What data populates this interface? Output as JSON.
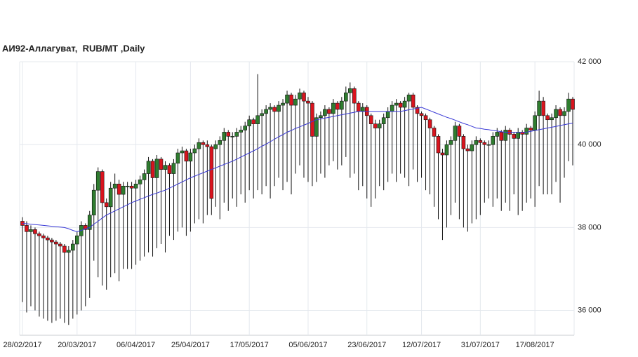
{
  "chart_data": {
    "type": "candlestick",
    "title": "АИ92-Аллагуват,  RUB/MT ,Daily",
    "categories": [
      "28/02/2017",
      null,
      null,
      null,
      null,
      null,
      null,
      null,
      null,
      null,
      null,
      null,
      null,
      "20/03/2017",
      null,
      null,
      null,
      null,
      null,
      null,
      null,
      null,
      null,
      null,
      null,
      null,
      null,
      "06/04/2017",
      null,
      null,
      null,
      null,
      null,
      null,
      null,
      null,
      null,
      null,
      null,
      null,
      "25/04/2017",
      null,
      null,
      null,
      null,
      null,
      null,
      null,
      null,
      null,
      null,
      null,
      null,
      null,
      "17/05/2017",
      null,
      null,
      null,
      null,
      null,
      null,
      null,
      null,
      null,
      null,
      null,
      null,
      null,
      "05/06/2017",
      null,
      null,
      null,
      null,
      null,
      null,
      null,
      null,
      null,
      null,
      null,
      null,
      null,
      "23/06/2017",
      null,
      null,
      null,
      null,
      null,
      null,
      null,
      null,
      null,
      null,
      null,
      null,
      "12/07/2017",
      null,
      null,
      null,
      null,
      null,
      null,
      null,
      null,
      null,
      null,
      null,
      null,
      null,
      "31/07/2017",
      null,
      null,
      null,
      null,
      null,
      null,
      null,
      null,
      null,
      null,
      null,
      null,
      "17/08/2017",
      null,
      null,
      null,
      null,
      null,
      null,
      null,
      null,
      null
    ],
    "open": [
      38150,
      38050,
      37900,
      37950,
      37850,
      37800,
      37750,
      37700,
      37650,
      37600,
      37550,
      37400,
      37450,
      37600,
      37800,
      38050,
      37950,
      38300,
      38900,
      39350,
      38600,
      38500,
      38950,
      39050,
      38800,
      39000,
      39000,
      38950,
      39050,
      39150,
      39300,
      39600,
      39200,
      39650,
      39400,
      39500,
      39300,
      39550,
      39800,
      39850,
      39600,
      39800,
      39900,
      40050,
      40000,
      39950,
      39900,
      40000,
      40100,
      40300,
      40200,
      40200,
      40300,
      40350,
      40450,
      40600,
      40500,
      40700,
      40750,
      40850,
      40900,
      40800,
      40950,
      41000,
      41200,
      40950,
      41100,
      41250,
      41050,
      41000,
      40200,
      40650,
      40700,
      40850,
      40750,
      41000,
      40850,
      41050,
      41250,
      41350,
      41000,
      40800,
      40900,
      40700,
      40500,
      40400,
      40500,
      40650,
      40800,
      40950,
      41000,
      40900,
      41050,
      41200,
      40900,
      40750,
      40700,
      40600,
      40400,
      40200,
      39800,
      39750,
      40000,
      40100,
      40450,
      40200,
      39900,
      39850,
      40000,
      40100,
      40050,
      40000,
      40000,
      40200,
      40300,
      40100,
      40350,
      40250,
      40150,
      40300,
      40250,
      40400,
      40350,
      40700,
      41050,
      40700,
      40600,
      40650,
      40850,
      40700,
      40800,
      41100
    ],
    "high": [
      38250,
      38150,
      38050,
      38000,
      37900,
      37850,
      37800,
      37750,
      37700,
      37650,
      37600,
      37550,
      37700,
      37900,
      38150,
      38100,
      38400,
      39050,
      39450,
      39400,
      38700,
      39100,
      39300,
      39150,
      39100,
      39100,
      39100,
      39150,
      39250,
      39400,
      39700,
      39650,
      39750,
      39700,
      39600,
      39550,
      39650,
      39900,
      39950,
      39900,
      39900,
      40000,
      40150,
      40100,
      40100,
      40000,
      40100,
      40200,
      40400,
      40350,
      40300,
      40400,
      40450,
      40550,
      40700,
      40650,
      41700,
      40850,
      40950,
      41000,
      40950,
      41050,
      41100,
      41300,
      41250,
      41200,
      41350,
      41300,
      41150,
      41050,
      40750,
      40800,
      40950,
      40900,
      41100,
      41050,
      41150,
      41400,
      41500,
      41400,
      41050,
      41000,
      40950,
      40750,
      40600,
      40600,
      40750,
      40900,
      41050,
      41100,
      41050,
      41150,
      41250,
      41250,
      40950,
      40800,
      40750,
      40650,
      40450,
      40250,
      39900,
      40100,
      40200,
      40550,
      40500,
      40250,
      40000,
      40100,
      40200,
      40150,
      40100,
      40100,
      40300,
      40400,
      40350,
      40450,
      40400,
      40300,
      40400,
      40350,
      40500,
      40450,
      40800,
      41300,
      41150,
      40750,
      40750,
      40950,
      40900,
      40900,
      41250,
      41150
    ],
    "low": [
      36200,
      35950,
      36100,
      36000,
      35850,
      35800,
      35750,
      35700,
      35750,
      35800,
      35700,
      35650,
      35800,
      35900,
      36000,
      36100,
      36300,
      37200,
      36800,
      36600,
      36500,
      36800,
      36900,
      36700,
      37000,
      37000,
      37000,
      37100,
      37200,
      37300,
      37400,
      37300,
      37500,
      37600,
      37400,
      37800,
      37700,
      37900,
      38000,
      37800,
      37900,
      38100,
      38200,
      38100,
      38300,
      38300,
      38500,
      38200,
      38600,
      38400,
      38700,
      38500,
      38800,
      38600,
      38900,
      38700,
      38900,
      38800,
      39000,
      38700,
      39000,
      39200,
      38900,
      39100,
      38800,
      39300,
      39500,
      39200,
      39100,
      39000,
      39100,
      39300,
      39200,
      39500,
      39600,
      39400,
      39500,
      39700,
      39200,
      39300,
      38900,
      39000,
      38700,
      38500,
      38700,
      39000,
      38900,
      39100,
      39300,
      39100,
      39300,
      39200,
      39000,
      39400,
      39100,
      39200,
      38900,
      38800,
      38500,
      38200,
      37700,
      38000,
      38300,
      38600,
      38200,
      38000,
      37900,
      38100,
      38200,
      38300,
      38600,
      38700,
      38500,
      38700,
      38400,
      38600,
      38400,
      38800,
      38300,
      38400,
      38600,
      38700,
      38500,
      39000,
      38800,
      38800,
      38800,
      39100,
      38600,
      39200,
      39600,
      39500
    ],
    "close": [
      38050,
      37900,
      37950,
      37850,
      37800,
      37750,
      37700,
      37650,
      37600,
      37550,
      37400,
      37450,
      37600,
      37800,
      38050,
      37950,
      38300,
      38900,
      39350,
      38600,
      38500,
      38950,
      39050,
      38800,
      39000,
      39000,
      38950,
      39050,
      39150,
      39300,
      39600,
      39200,
      39650,
      39400,
      39500,
      39300,
      39550,
      39800,
      39850,
      39600,
      39800,
      39900,
      40050,
      40000,
      39950,
      38700,
      40000,
      40100,
      40300,
      40200,
      40200,
      40300,
      40350,
      40450,
      40600,
      40500,
      40700,
      40750,
      40850,
      40900,
      40800,
      40950,
      41000,
      41200,
      40950,
      41100,
      41250,
      41050,
      41000,
      40200,
      40650,
      40700,
      40850,
      40750,
      41000,
      40850,
      41050,
      41250,
      41350,
      41000,
      40800,
      40900,
      40700,
      40500,
      40400,
      40500,
      40650,
      40800,
      40950,
      41000,
      40900,
      41050,
      41200,
      40900,
      40750,
      40700,
      40600,
      40400,
      40200,
      39800,
      39750,
      40000,
      40100,
      40450,
      40200,
      39900,
      39850,
      40000,
      40100,
      40050,
      40000,
      40000,
      40200,
      40300,
      40100,
      40350,
      40250,
      40150,
      40300,
      40250,
      40400,
      40350,
      40700,
      41050,
      40700,
      40600,
      40650,
      40850,
      40700,
      40800,
      41100,
      40850
    ],
    "ma_values": [
      38100,
      38090,
      38080,
      38070,
      38060,
      38050,
      38040,
      38030,
      38020,
      38010,
      38000,
      37970,
      37930,
      37900,
      37930,
      37970,
      38000,
      38080,
      38150,
      38230,
      38300,
      38350,
      38400,
      38450,
      38500,
      38550,
      38600,
      38640,
      38680,
      38720,
      38760,
      38800,
      38830,
      38870,
      38900,
      38950,
      39000,
      39050,
      39100,
      39150,
      39200,
      39240,
      39280,
      39320,
      39360,
      39400,
      39440,
      39480,
      39520,
      39560,
      39600,
      39650,
      39700,
      39750,
      39800,
      39850,
      39900,
      39960,
      40010,
      40070,
      40130,
      40190,
      40240,
      40300,
      40340,
      40390,
      40430,
      40470,
      40510,
      40560,
      40600,
      40620,
      40640,
      40660,
      40680,
      40700,
      40720,
      40740,
      40760,
      40780,
      40800,
      40800,
      40800,
      40800,
      40800,
      40800,
      40800,
      40800,
      40800,
      40800,
      40800,
      40820,
      40840,
      40860,
      40880,
      40900,
      40860,
      40820,
      40780,
      40740,
      40700,
      40660,
      40630,
      40590,
      40550,
      40510,
      40480,
      40440,
      40400,
      40390,
      40370,
      40360,
      40340,
      40330,
      40310,
      40300,
      40300,
      40300,
      40300,
      40300,
      40300,
      40320,
      40340,
      40360,
      40380,
      40400,
      40420,
      40440,
      40460,
      40480,
      40500,
      40520
    ],
    "up_color": "#2f7d2f",
    "down_color": "#d9141e",
    "ma_color": "#3a3ad6",
    "ylim": [
      35400,
      42000
    ],
    "yticks": [
      {
        "value": 36000,
        "label": "36 000"
      },
      {
        "value": 38000,
        "label": "38 000"
      },
      {
        "value": 40000,
        "label": "40 000"
      },
      {
        "value": 42000,
        "label": "42 000"
      }
    ],
    "grid": true
  }
}
